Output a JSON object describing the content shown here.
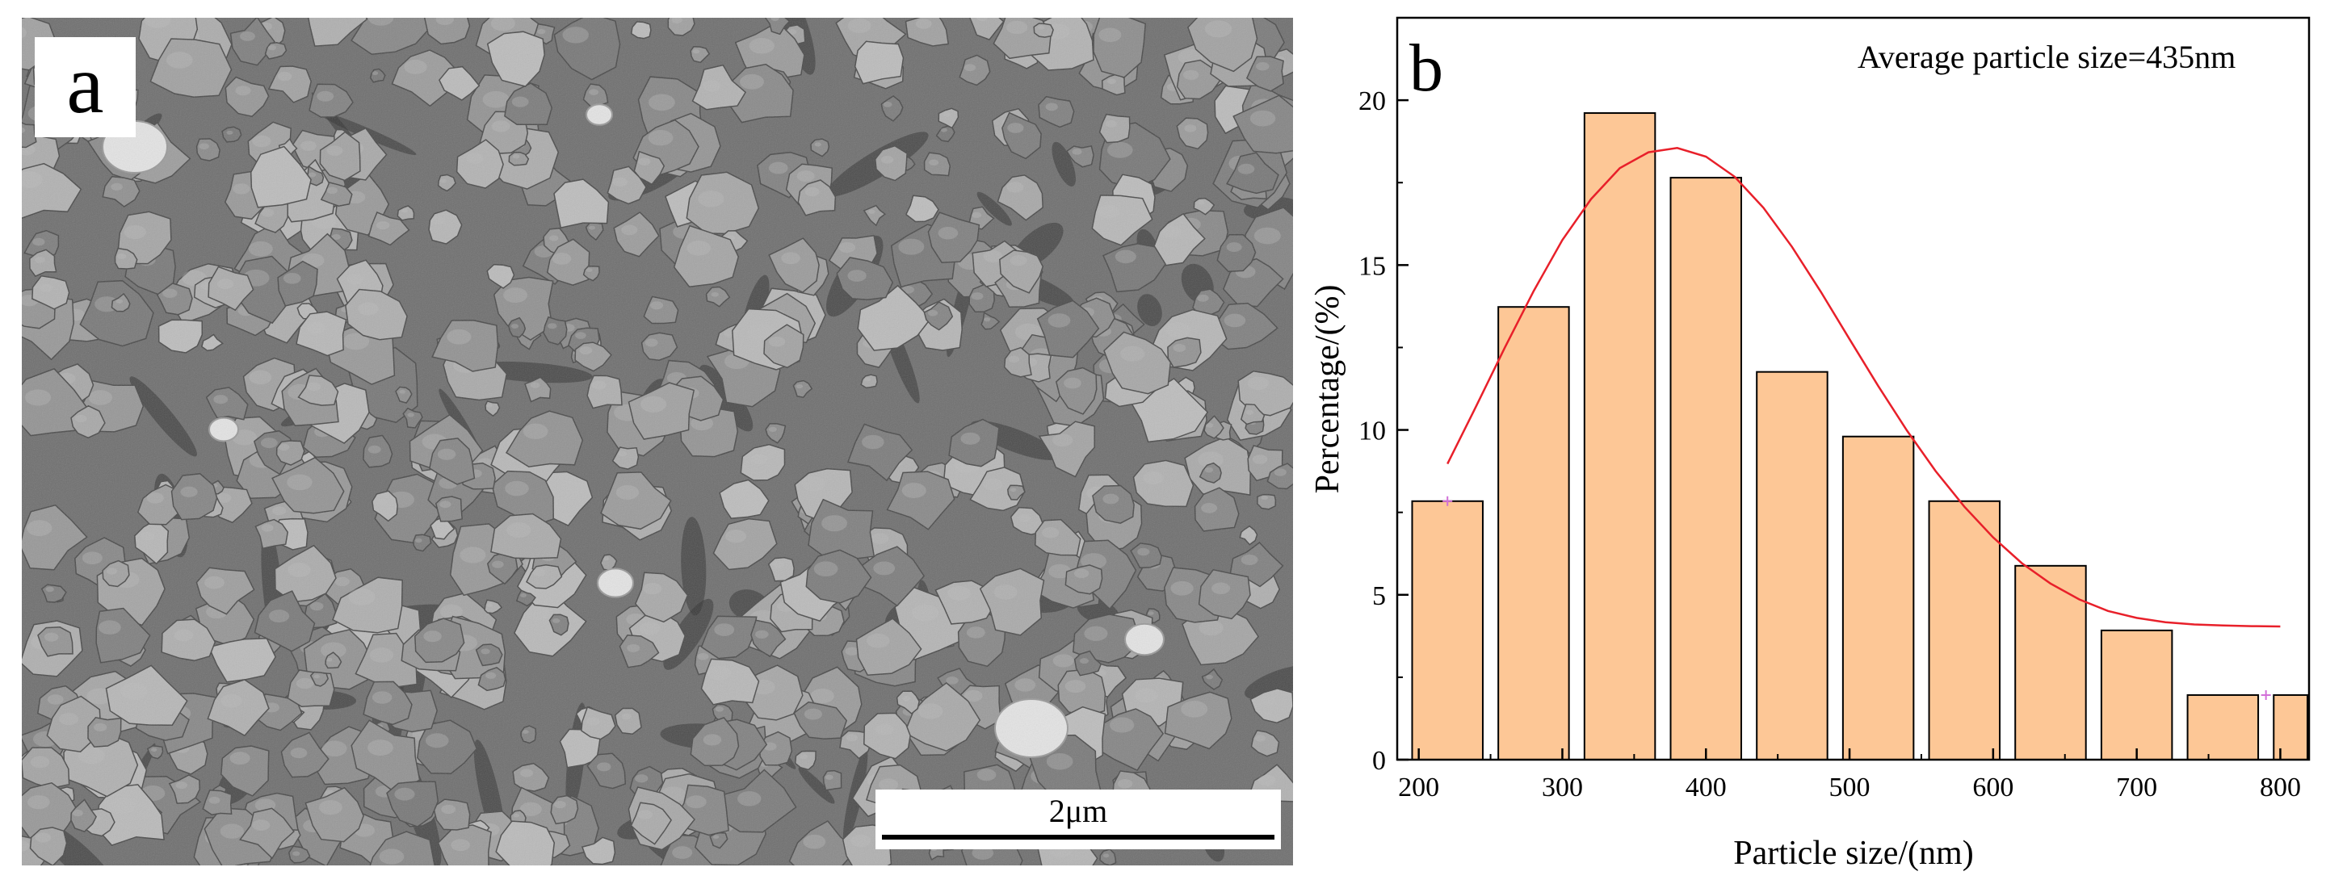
{
  "panel_a": {
    "letter": "a",
    "scale_bar_label": "2μm"
  },
  "panel_b": {
    "letter": "b",
    "annotation": "Average particle size=435nm"
  },
  "chart_data": {
    "type": "bar",
    "title": "",
    "xlabel": "Particle size/(nm)",
    "ylabel": "Percentage/(%)",
    "xlim": [
      185,
      820
    ],
    "ylim": [
      0,
      22.5
    ],
    "xticks": [
      200,
      300,
      400,
      500,
      600,
      700,
      800
    ],
    "yticks": [
      0,
      5,
      10,
      15,
      20
    ],
    "bin_width": 60,
    "bin_centers": [
      220,
      280,
      340,
      400,
      460,
      520,
      580,
      640,
      700,
      760,
      820
    ],
    "values": [
      7.84,
      13.73,
      19.61,
      17.65,
      11.76,
      9.8,
      7.84,
      5.88,
      3.92,
      1.96,
      1.96
    ],
    "bar_color": "#fdc796",
    "bar_edge_color": "#000000",
    "fit_curve": {
      "type": "gaussian",
      "color": "#e8202a",
      "x": [
        220,
        240,
        260,
        280,
        300,
        320,
        340,
        360,
        380,
        400,
        420,
        440,
        460,
        480,
        500,
        520,
        540,
        560,
        580,
        600,
        620,
        640,
        660,
        680,
        700,
        720,
        740,
        760,
        780,
        800
      ],
      "y": [
        8.97,
        10.72,
        12.5,
        14.21,
        15.76,
        17.0,
        17.94,
        18.42,
        18.55,
        18.29,
        17.68,
        16.74,
        15.55,
        14.19,
        12.75,
        11.33,
        9.98,
        8.75,
        7.67,
        6.74,
        5.96,
        5.34,
        4.86,
        4.51,
        4.3,
        4.17,
        4.1,
        4.07,
        4.05,
        4.04
      ]
    },
    "markers": [
      {
        "x": 220,
        "y": 7.84,
        "color": "#d26fd8"
      },
      {
        "x": 790,
        "y": 1.96,
        "color": "#d26fd8"
      }
    ]
  }
}
